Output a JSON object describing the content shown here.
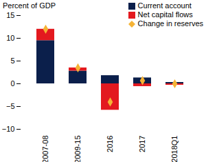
{
  "chart_data": {
    "type": "bar",
    "stacked": true,
    "ylabel": "Percent of GDP",
    "categories": [
      "2007-08",
      "2009-15",
      "2016",
      "2017",
      "2018Q1"
    ],
    "series": [
      {
        "name": "Current account",
        "color": "#0b1f4b",
        "type": "bar",
        "values": [
          9.5,
          2.8,
          1.8,
          1.3,
          0.3
        ]
      },
      {
        "name": "Net capital flows",
        "color": "#e3191f",
        "type": "bar",
        "values": [
          2.5,
          0.7,
          -5.8,
          -0.6,
          -0.3
        ]
      },
      {
        "name": "Change in reserves",
        "color": "#f5b335",
        "type": "scatter",
        "marker": "diamond",
        "values": [
          12,
          3.5,
          -4,
          0.7,
          0.0
        ]
      }
    ],
    "ylim": [
      -10,
      15
    ],
    "yticks": [
      -10,
      -5,
      0,
      5,
      10,
      15
    ],
    "legend": "top-right"
  }
}
